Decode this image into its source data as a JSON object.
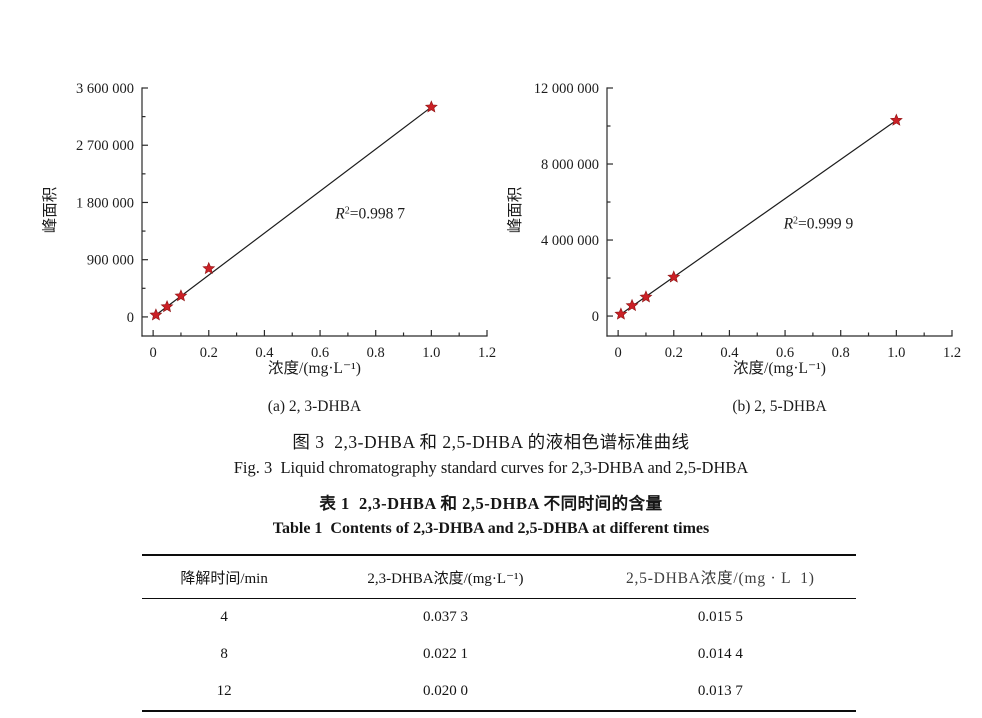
{
  "page": {
    "background": "#ffffff",
    "text_color": "#1c1c1c"
  },
  "figure": {
    "caption_zh": "图 3  2,3-DHBA 和 2,5-DHBA 的液相色谱标准曲线",
    "caption_en": "Fig. 3  Liquid chromatography standard curves for 2,3-DHBA and 2,5-DHBA"
  },
  "table_section": {
    "caption_zh": "表 1  2,3-DHBA 和 2,5-DHBA 不同时间的含量",
    "caption_en": "Table 1  Contents of 2,3-DHBA and 2,5-DHBA at different times",
    "headers": [
      "降解时间/min",
      "2,3-DHBA浓度/(mg·L⁻¹)",
      "2,5-DHBA浓度/(mg · L  1)"
    ],
    "rows": [
      [
        "4",
        "0.037 3",
        "0.015 5"
      ],
      [
        "8",
        "0.022 1",
        "0.014 4"
      ],
      [
        "12",
        "0.020 0",
        "0.013 7"
      ]
    ]
  },
  "chart_data": [
    {
      "type": "scatter",
      "subtitle": "(a) 2, 3-DHBA",
      "xlabel": "浓度/(mg·L⁻¹)",
      "ylabel": "峰面积",
      "x": [
        0.01,
        0.05,
        0.1,
        0.2,
        1.0
      ],
      "y": [
        30000,
        160000,
        330000,
        760000,
        3300000
      ],
      "fit_line": true,
      "r2_label": "R²=0.998 7",
      "r2": "0.998 7",
      "r2_pos": {
        "x": 0.78,
        "y": 1550000
      },
      "x_ticks": [
        0,
        0.2,
        0.4,
        0.6,
        0.8,
        1.0,
        1.2
      ],
      "x_tick_labels": [
        "0",
        "0.2",
        "0.4",
        "0.6",
        "0.8",
        "1.0",
        "1.2"
      ],
      "y_ticks": [
        0,
        900000,
        1800000,
        2700000,
        3600000
      ],
      "y_tick_labels": [
        "0",
        "900 000",
        "1 800 000",
        "2 700 000",
        "3 600 000"
      ],
      "xlim": [
        -0.04,
        1.2
      ],
      "ylim": [
        -300000,
        3600000
      ],
      "grid": false,
      "legend": null,
      "marker": "star",
      "marker_color": "#cb2026",
      "marker_edge": "#8e1212",
      "line_color": "#1c1c1c"
    },
    {
      "type": "scatter",
      "subtitle": "(b) 2, 5-DHBA",
      "xlabel": "浓度/(mg·L⁻¹)",
      "ylabel": "峰面积",
      "x": [
        0.01,
        0.05,
        0.1,
        0.2,
        1.0
      ],
      "y": [
        100000,
        550000,
        1000000,
        2050000,
        10300000
      ],
      "fit_line": true,
      "r2_label": "R²=0.999 9",
      "r2": "0.999 9",
      "r2_pos": {
        "x": 0.72,
        "y": 4600000
      },
      "x_ticks": [
        0,
        0.2,
        0.4,
        0.6,
        0.8,
        1.0,
        1.2
      ],
      "x_tick_labels": [
        "0",
        "0.2",
        "0.4",
        "0.6",
        "0.8",
        "1.0",
        "1.2"
      ],
      "y_ticks": [
        0,
        4000000,
        8000000,
        12000000
      ],
      "y_tick_labels": [
        "0",
        "4 000 000",
        "8 000 000",
        "12 000 000"
      ],
      "xlim": [
        -0.04,
        1.2
      ],
      "ylim": [
        -1050000,
        12000000
      ],
      "grid": false,
      "legend": null,
      "marker": "star",
      "marker_color": "#cb2026",
      "marker_edge": "#8e1212",
      "line_color": "#1c1c1c"
    }
  ]
}
